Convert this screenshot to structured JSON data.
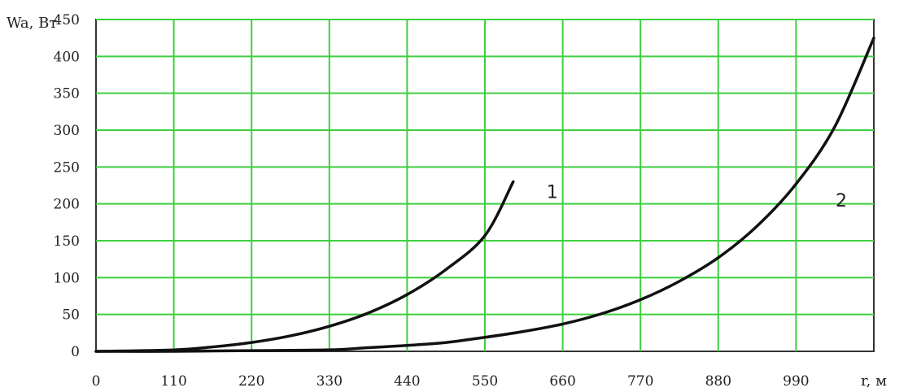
{
  "chart_data": {
    "type": "line",
    "ylabel": "Wa, Вт",
    "xlabel": "r, м",
    "xlim": [
      0,
      1100
    ],
    "ylim": [
      0,
      450
    ],
    "x_ticks": [
      "0",
      "110",
      "220",
      "330",
      "440",
      "550",
      "660",
      "770",
      "880",
      "990"
    ],
    "y_ticks": [
      "0",
      "50",
      "100",
      "150",
      "200",
      "250",
      "300",
      "350",
      "400",
      "450"
    ],
    "grid": true,
    "grid_color": "#3fcf3f",
    "series": [
      {
        "name": "1",
        "x": [
          0,
          110,
          165,
          220,
          275,
          330,
          385,
          440,
          495,
          550,
          590
        ],
        "y": [
          0,
          2,
          6,
          12,
          21,
          34,
          52,
          77,
          111,
          157,
          230
        ]
      },
      {
        "name": "2",
        "x": [
          0,
          110,
          220,
          330,
          385,
          440,
          495,
          550,
          605,
          660,
          715,
          770,
          825,
          880,
          935,
          990,
          1045,
          1100
        ],
        "y": [
          0,
          0,
          1,
          2,
          5,
          8,
          12,
          19,
          27,
          37,
          51,
          70,
          95,
          127,
          170,
          227,
          305,
          425
        ]
      }
    ]
  }
}
